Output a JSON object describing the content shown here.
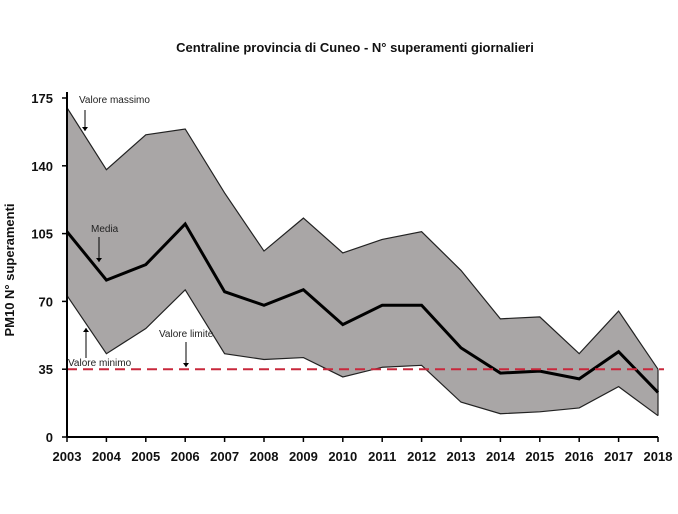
{
  "chart_data": {
    "type": "area",
    "title": "Centraline provincia di Cuneo - N° superamenti giornalieri",
    "xlabel": "",
    "ylabel": "PM10 N° superamenti",
    "ylim": [
      0,
      175
    ],
    "yticks": [
      0,
      35,
      70,
      105,
      140,
      175
    ],
    "x": [
      2003,
      2004,
      2005,
      2006,
      2007,
      2008,
      2009,
      2010,
      2011,
      2012,
      2013,
      2014,
      2015,
      2016,
      2017,
      2018
    ],
    "series": [
      {
        "name": "Valore massimo",
        "values": [
          170,
          138,
          156,
          159,
          126,
          96,
          113,
          95,
          102,
          106,
          86,
          61,
          62,
          43,
          65,
          35
        ]
      },
      {
        "name": "Media",
        "values": [
          106,
          81,
          89,
          110,
          75,
          68,
          76,
          58,
          68,
          68,
          46,
          33,
          34,
          30,
          44,
          23
        ]
      },
      {
        "name": "Valore minimo",
        "values": [
          73,
          43,
          56,
          76,
          43,
          40,
          41,
          31,
          36,
          37,
          18,
          12,
          13,
          15,
          26,
          11
        ]
      }
    ],
    "limit": {
      "name": "Valore limite",
      "value": 35
    },
    "colors": {
      "band": "#a9a6a6",
      "line": "#000000",
      "limit": "#c8283c"
    },
    "grid": false,
    "annotations": [
      "Valore massimo",
      "Media",
      "Valore limite",
      "Valore minimo"
    ]
  }
}
